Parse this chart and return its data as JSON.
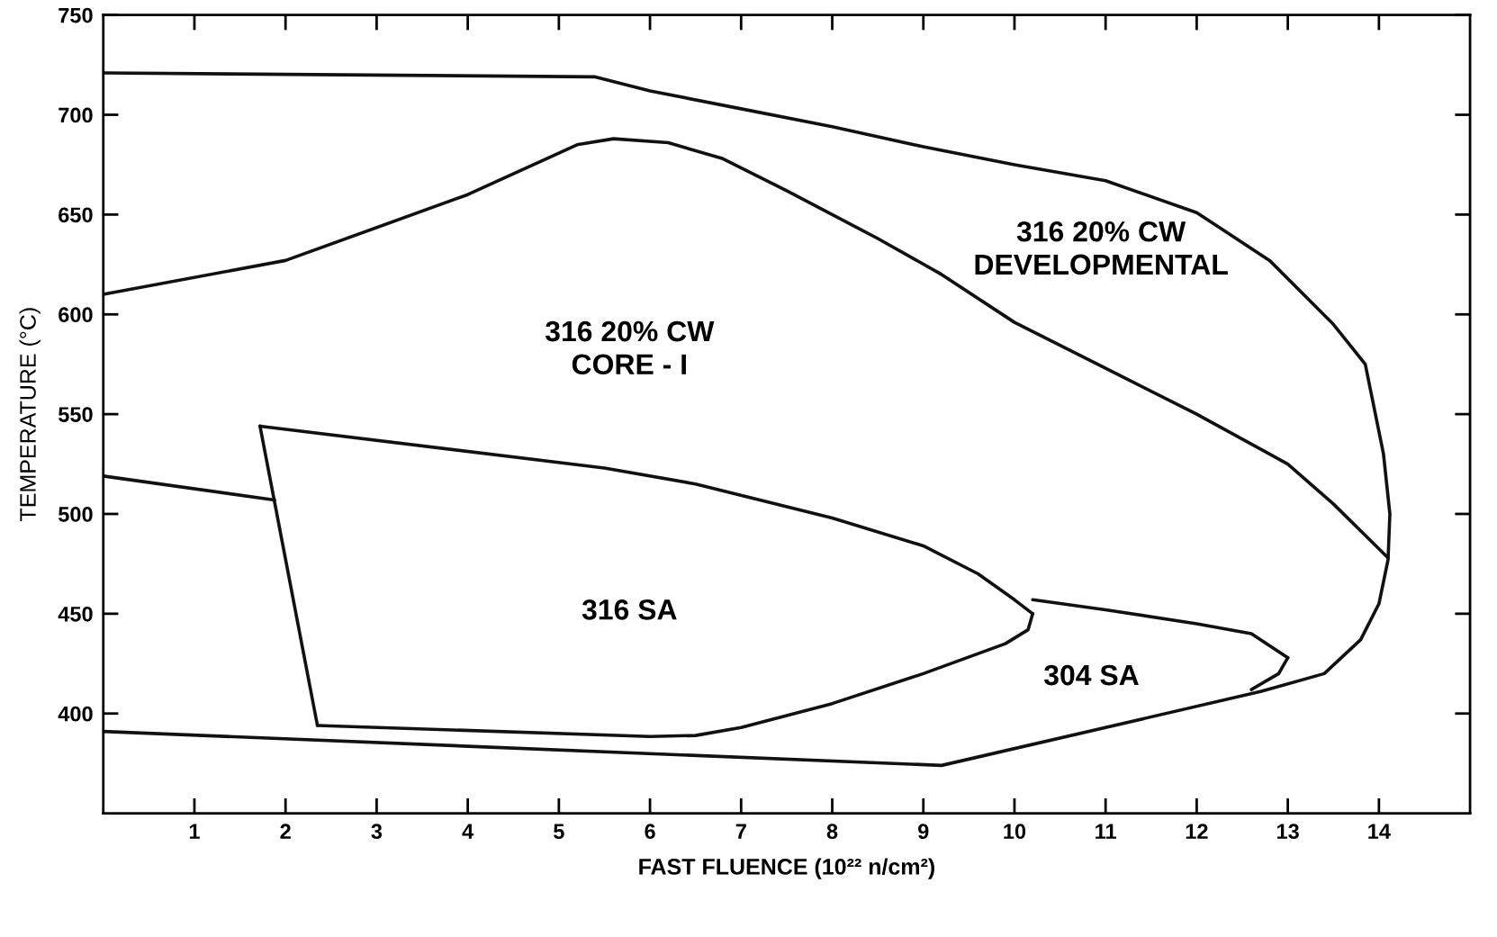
{
  "chart_data": {
    "type": "line",
    "xlabel": "FAST FLUENCE (10²² n/cm²)",
    "ylabel": "TEMPERATURE (°C)",
    "xlim": [
      0,
      15
    ],
    "ylim": [
      350,
      750
    ],
    "xticks": [
      1,
      2,
      3,
      4,
      5,
      6,
      7,
      8,
      9,
      10,
      11,
      12,
      13,
      14
    ],
    "yticks": [
      400,
      450,
      500,
      550,
      600,
      650,
      700,
      750
    ],
    "grid": false,
    "legend": false,
    "marker": "none",
    "line_style": "solid",
    "series": [
      {
        "color": "#111111",
        "x": [
          0,
          5.4,
          6,
          7,
          8,
          9,
          10,
          11,
          12,
          12.8,
          13.5,
          13.85,
          14.05,
          14.12,
          14.1,
          14.0,
          13.8,
          13.4,
          12.7,
          9.2,
          0
        ],
        "values": [
          721,
          719,
          712,
          703,
          694,
          684,
          675,
          667,
          651,
          627,
          595,
          575,
          530,
          500,
          477,
          455,
          437,
          420,
          411,
          374,
          391
        ]
      },
      {
        "color": "#111111",
        "x": [
          0,
          2,
          4,
          5.2,
          5.6,
          6.2,
          6.8,
          7.5,
          8.5,
          9.2,
          10,
          11,
          12,
          13,
          13.5,
          14.1
        ],
        "values": [
          610,
          627,
          660,
          685,
          688,
          686,
          678,
          662,
          638,
          620,
          596,
          573,
          550,
          525,
          505,
          478
        ]
      },
      {
        "color": "#111111",
        "x": [
          1.72,
          5.5,
          6.5,
          8,
          9,
          9.6,
          10,
          10.2
        ],
        "values": [
          544,
          523,
          515,
          498,
          484,
          470,
          457,
          450
        ]
      },
      {
        "color": "#111111",
        "x": [
          2.35,
          6,
          6.5,
          7,
          8,
          9,
          9.9,
          10.15,
          10.2
        ],
        "values": [
          394,
          388.5,
          389,
          393,
          405,
          420,
          435,
          442,
          450
        ]
      },
      {
        "color": "#111111",
        "x": [
          1.72,
          2.35
        ],
        "values": [
          544,
          394
        ]
      },
      {
        "color": "#111111",
        "x": [
          0,
          1.88
        ],
        "values": [
          519,
          507
        ]
      },
      {
        "color": "#111111",
        "x": [
          10.2,
          11,
          12,
          12.6,
          13
        ],
        "values": [
          457,
          452,
          445,
          440,
          428
        ]
      },
      {
        "color": "#111111",
        "x": [
          12.6,
          12.9,
          13
        ],
        "values": [
          412,
          420,
          428
        ]
      }
    ],
    "annotations": [
      "316 20% CW\nDEVELOPMENTAL",
      "316 20% CW\nCORE - I",
      "316 SA",
      "304 SA"
    ]
  }
}
